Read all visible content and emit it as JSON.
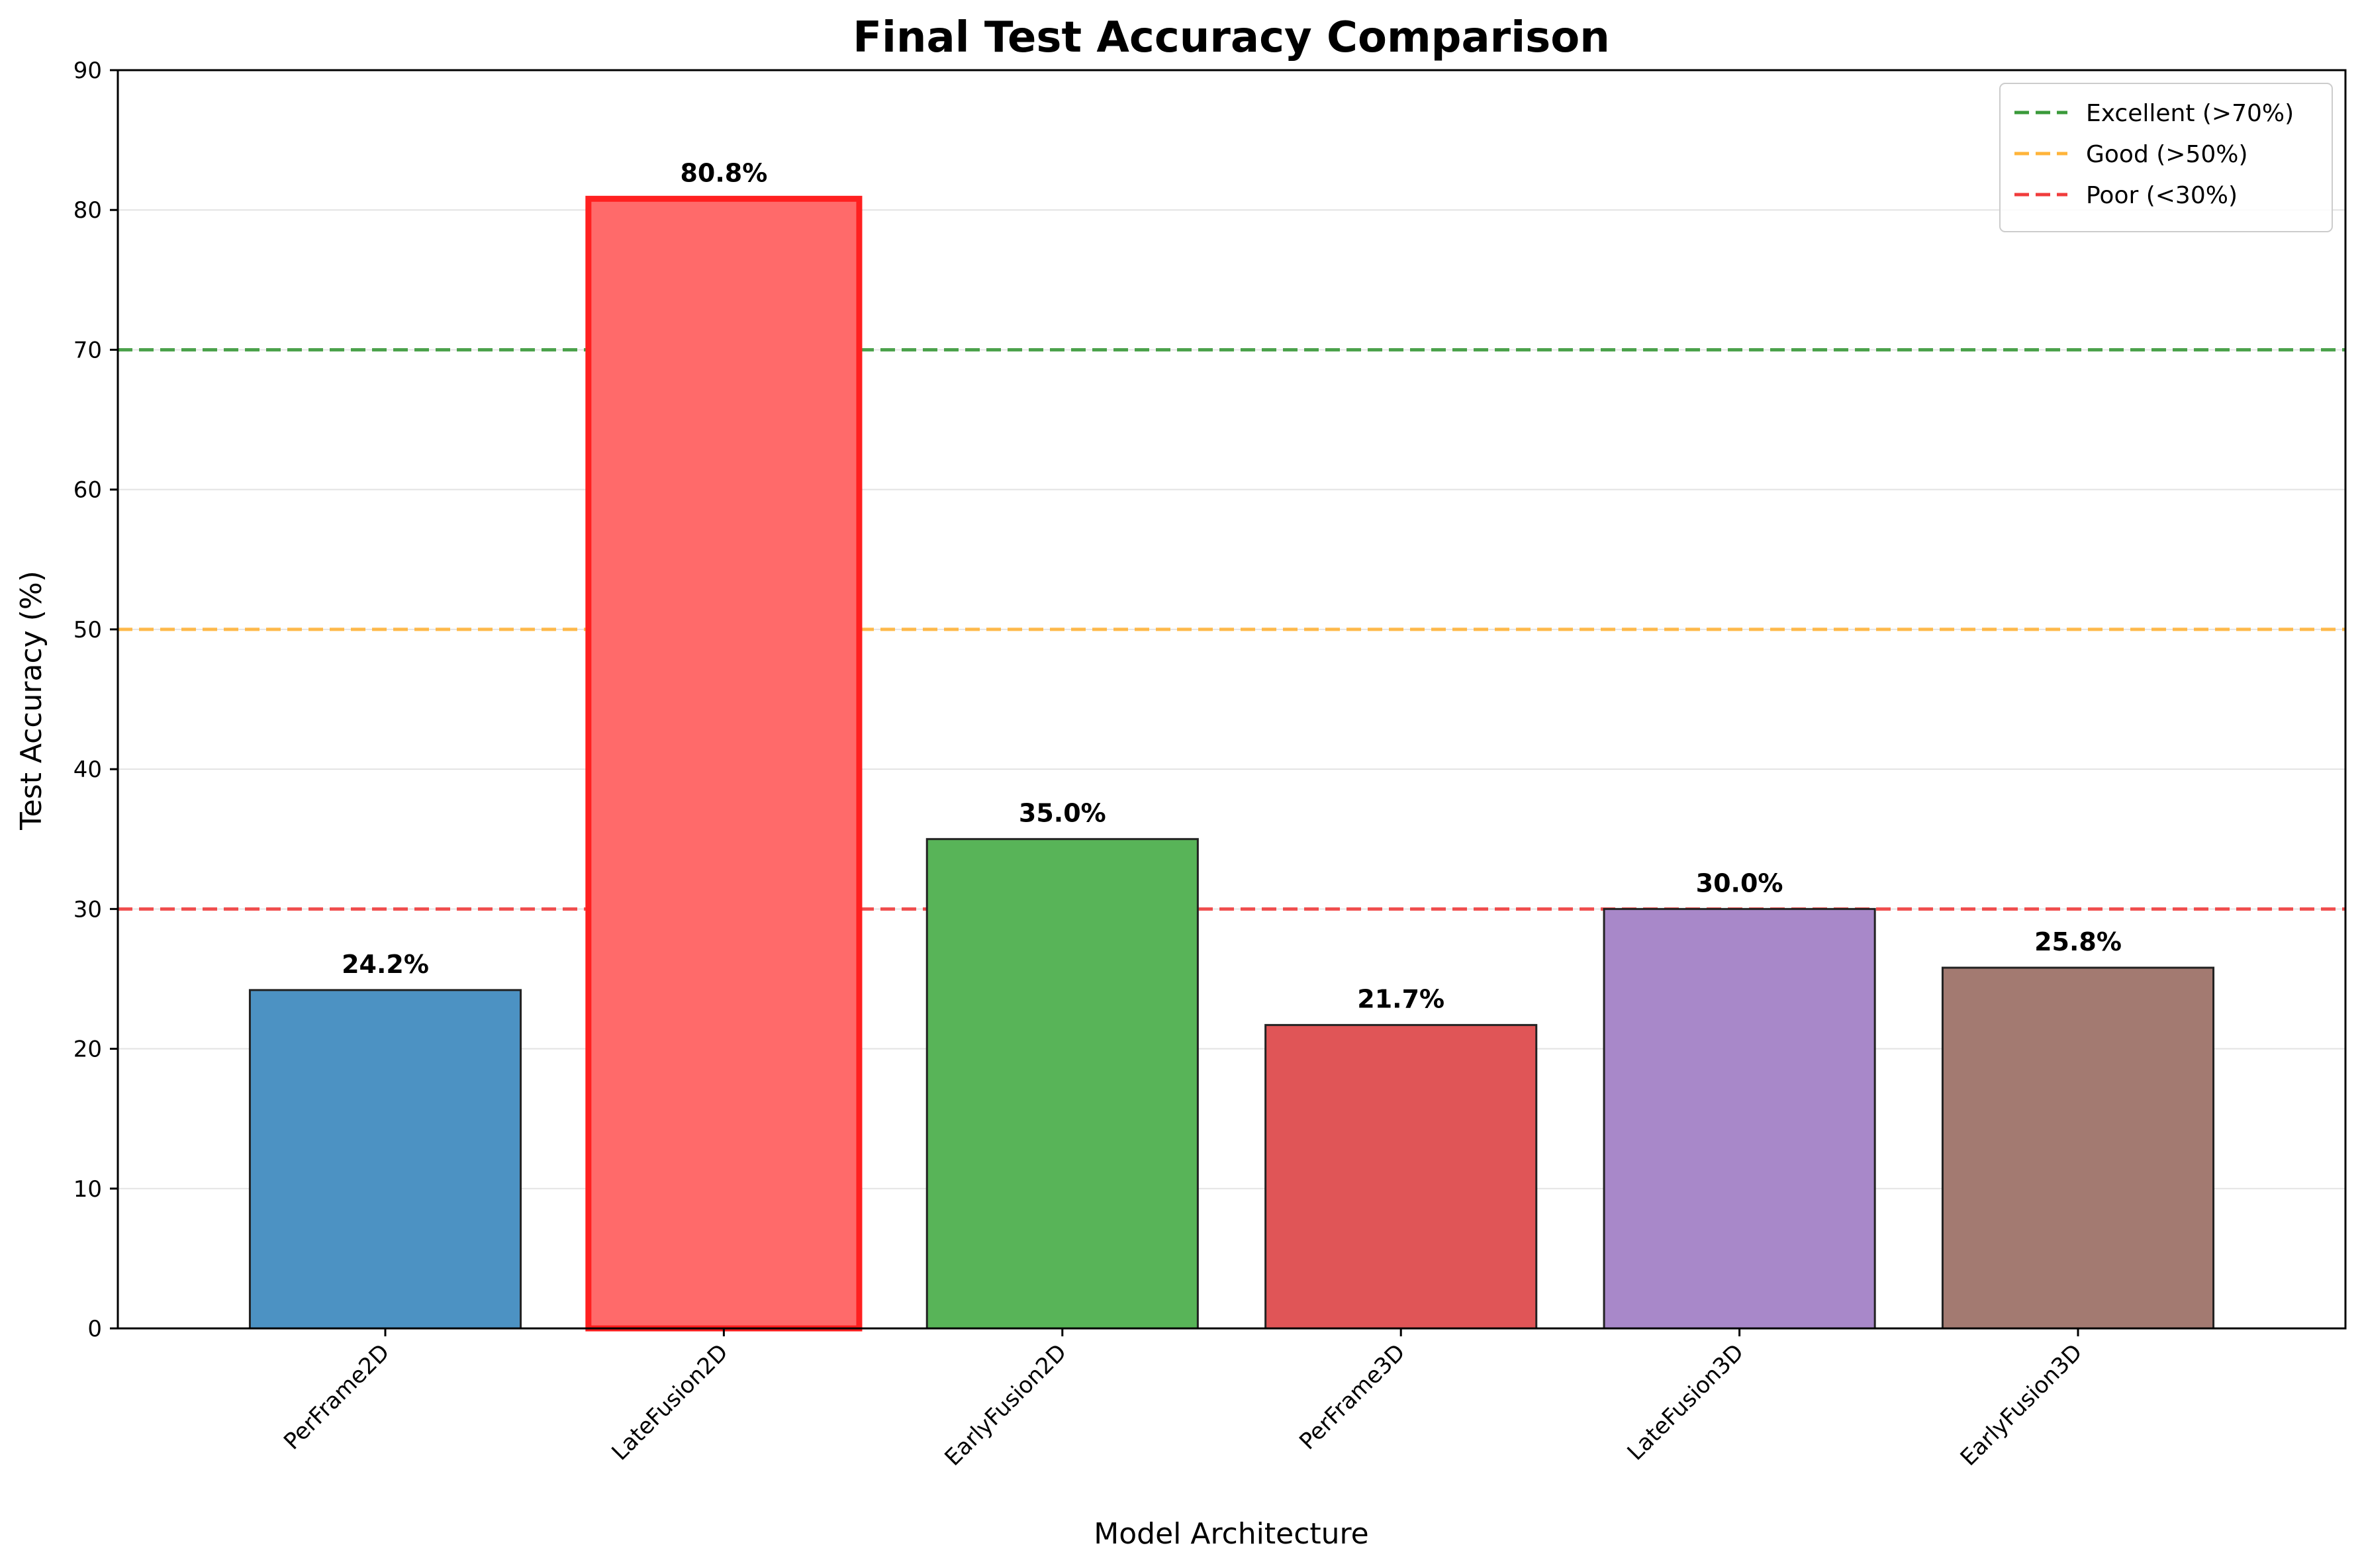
{
  "chart_data": {
    "type": "bar",
    "title": "Final Test Accuracy Comparison",
    "xlabel": "Model Architecture",
    "ylabel": "Test Accuracy (%)",
    "ylim": [
      0,
      90
    ],
    "yticks": [
      0,
      10,
      20,
      30,
      40,
      50,
      60,
      70,
      80,
      90
    ],
    "grid": "horizontal",
    "legend_position": "top-right",
    "categories": [
      "PerFrame2D",
      "LateFusion2D",
      "EarlyFusion2D",
      "PerFrame3D",
      "LateFusion3D",
      "EarlyFusion3D"
    ],
    "values": [
      24.2,
      80.8,
      35.0,
      21.7,
      30.0,
      25.8
    ],
    "value_labels": [
      "24.2%",
      "80.8%",
      "35.0%",
      "21.7%",
      "30.0%",
      "25.8%"
    ],
    "bar_colors": [
      "#4c92c3",
      "#ff6a6a",
      "#58b458",
      "#e05557",
      "#a888c9",
      "#a37a71"
    ],
    "highlighted_index": 1,
    "highlight_edge_color": "#ff2020",
    "reference_lines": [
      {
        "label": "Excellent (>70%)",
        "value": 70,
        "color": "#3a9a3a"
      },
      {
        "label": "Good (>50%)",
        "value": 50,
        "color": "#ffb43a"
      },
      {
        "label": "Poor (<30%)",
        "value": 30,
        "color": "#f03c3c"
      }
    ]
  }
}
